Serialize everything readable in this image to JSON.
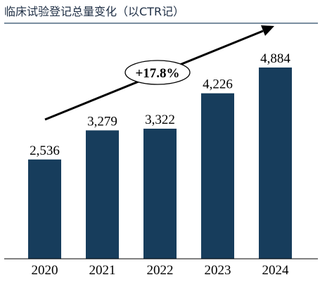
{
  "chart_data": {
    "type": "bar",
    "title": "临床试验登记总量变化（以CTR记）",
    "categories": [
      "2020",
      "2021",
      "2022",
      "2023",
      "2024"
    ],
    "values": [
      2536,
      3279,
      3322,
      4226,
      4884
    ],
    "value_labels": [
      "2,536",
      "3,279",
      "3,322",
      "4,226",
      "4,884"
    ],
    "ylim": [
      0,
      5000
    ],
    "grid": false,
    "legend": "none",
    "annotation": "+17.8%",
    "bar_color": "#173d5c",
    "title_rule_color": "#2b4a68"
  }
}
